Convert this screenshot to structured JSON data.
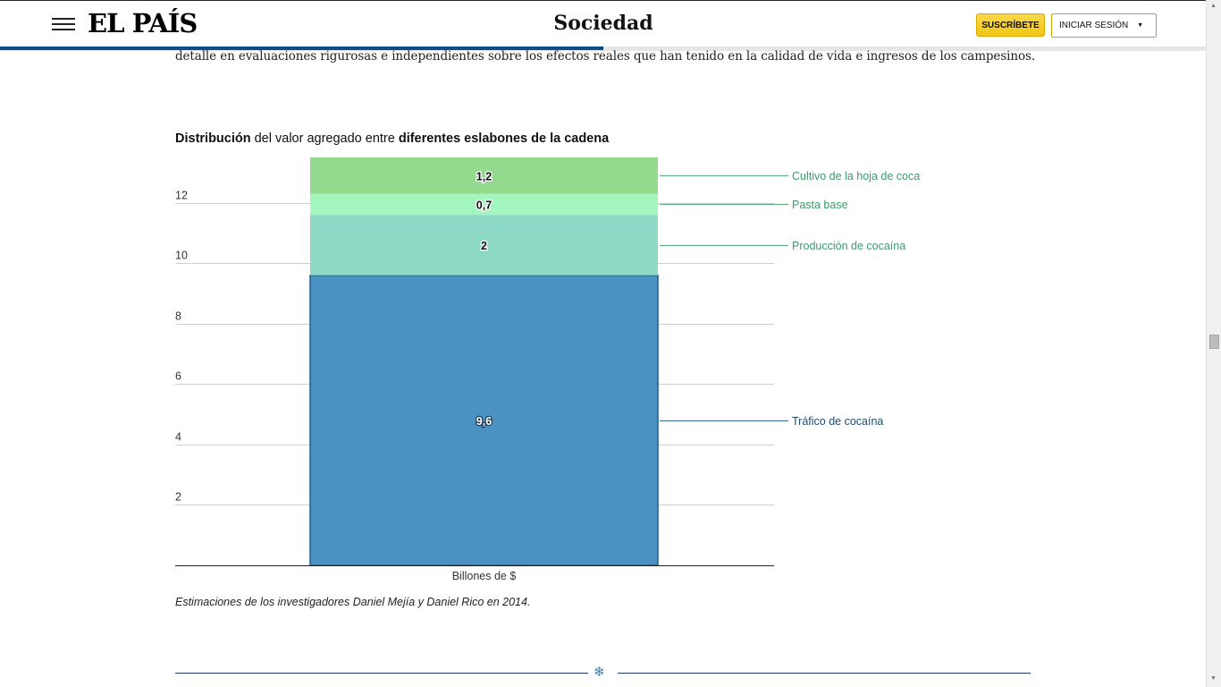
{
  "header": {
    "logo": "EL PAÍS",
    "section": "Sociedad",
    "subscribe_label": "SUSCRÍBETE",
    "login_label": "INICIAR SESIÓN",
    "menu_icon": "hamburger-icon",
    "caret_icon": "caret-down-icon",
    "reading_progress": 0.5
  },
  "article": {
    "text_line": "detalle en evaluaciones rigurosas e independientes sobre los efectos reales que han tenido en la calidad de vida e ingresos de los campesinos.",
    "chart_title_bold1": "Distribución",
    "chart_title_mid": " del valor agregado entre ",
    "chart_title_bold2": "diferentes eslabones de la cadena",
    "caption": "Estimaciones de los investigadores Daniel Mejía y Daniel Rico en 2014."
  },
  "chart_data": {
    "type": "bar",
    "stacked": true,
    "categories": [
      "Billones de $"
    ],
    "xlabel": "Billones de $",
    "ylim": [
      0,
      13.5
    ],
    "yticks": [
      2,
      4,
      6,
      8,
      10,
      12
    ],
    "grid": true,
    "series": [
      {
        "name": "Tráfico de cocaína",
        "values": [
          9.6
        ],
        "label": "9,6",
        "color": "#4a92c2",
        "label_color": "#1d4e70"
      },
      {
        "name": "Producción de cocaína",
        "values": [
          2
        ],
        "label": "2",
        "color": "#8ed9c6",
        "label_color": "#3e9a6c"
      },
      {
        "name": "Pasta base",
        "values": [
          0.7
        ],
        "label": "0,7",
        "color": "#a3f6be",
        "label_color": "#3e9a6c"
      },
      {
        "name": "Cultivo de la hoja de coca",
        "values": [
          1.2
        ],
        "label": "1,2",
        "color": "#93d98e",
        "label_color": "#3e9a6c"
      }
    ]
  },
  "colors": {
    "accent_blue": "#0b4c8c",
    "subscribe_yellow": "#f5cb1f"
  }
}
